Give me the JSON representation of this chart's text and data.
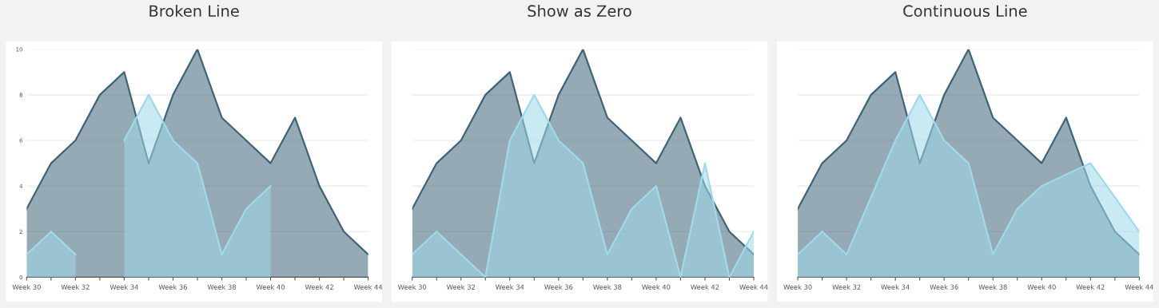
{
  "chart_data": [
    {
      "type": "area",
      "title": "Broken Line",
      "categories": [
        "Week 30",
        null,
        "Week 32",
        null,
        "Week 34",
        null,
        "Week 36",
        null,
        "Week 38",
        null,
        "Week 40",
        null,
        "Week 42",
        null,
        "Week 44"
      ],
      "series": [
        {
          "color": "#3f6478",
          "values": [
            3,
            5,
            6,
            8,
            9,
            5,
            8,
            10,
            7,
            6,
            5,
            7,
            4,
            2,
            1
          ]
        },
        {
          "color": "#9fd9ea",
          "values": [
            1,
            2,
            1,
            null,
            6,
            8,
            6,
            5,
            1,
            3,
            4,
            null,
            null,
            null,
            null
          ]
        }
      ],
      "ylim": [
        0,
        10
      ],
      "yticks": [
        0,
        2,
        4,
        6,
        8,
        10
      ],
      "grid": "y"
    },
    {
      "type": "area",
      "title": "Show as Zero",
      "categories": [
        "Week 30",
        null,
        "Week 32",
        null,
        "Week 34",
        null,
        "Week 36",
        null,
        "Week 38",
        null,
        "Week 40",
        null,
        "Week 42",
        null,
        "Week 44"
      ],
      "series": [
        {
          "color": "#3f6478",
          "values": [
            3,
            5,
            6,
            8,
            9,
            5,
            8,
            10,
            7,
            6,
            5,
            7,
            4,
            2,
            1
          ]
        },
        {
          "color": "#9fd9ea",
          "values": [
            1,
            2,
            1,
            0,
            6,
            8,
            6,
            5,
            1,
            3,
            4,
            0,
            5,
            0,
            2
          ]
        }
      ],
      "ylim": [
        0,
        10
      ],
      "yticks": [
        0,
        2,
        4,
        6,
        8,
        10
      ],
      "grid": "y",
      "tick_labels": "x"
    },
    {
      "type": "area",
      "title": "Continuous Line",
      "categories": [
        "Week 30",
        null,
        "Week 32",
        null,
        "Week 34",
        null,
        "Week 36",
        null,
        "Week 38",
        null,
        "Week 40",
        null,
        "Week 42",
        null,
        "Week 44"
      ],
      "series": [
        {
          "color": "#3f6478",
          "values": [
            3,
            5,
            6,
            8,
            9,
            5,
            8,
            10,
            7,
            6,
            5,
            7,
            4,
            2,
            1
          ]
        },
        {
          "color": "#9fd9ea",
          "values": [
            1,
            2,
            1,
            3.5,
            6,
            8,
            6,
            5,
            1,
            3,
            4,
            4.5,
            5,
            3.5,
            2
          ]
        }
      ],
      "ylim": [
        0,
        10
      ],
      "yticks": [
        0,
        2,
        4,
        6,
        8,
        10
      ],
      "grid": "y",
      "tick_labels": "x"
    }
  ]
}
